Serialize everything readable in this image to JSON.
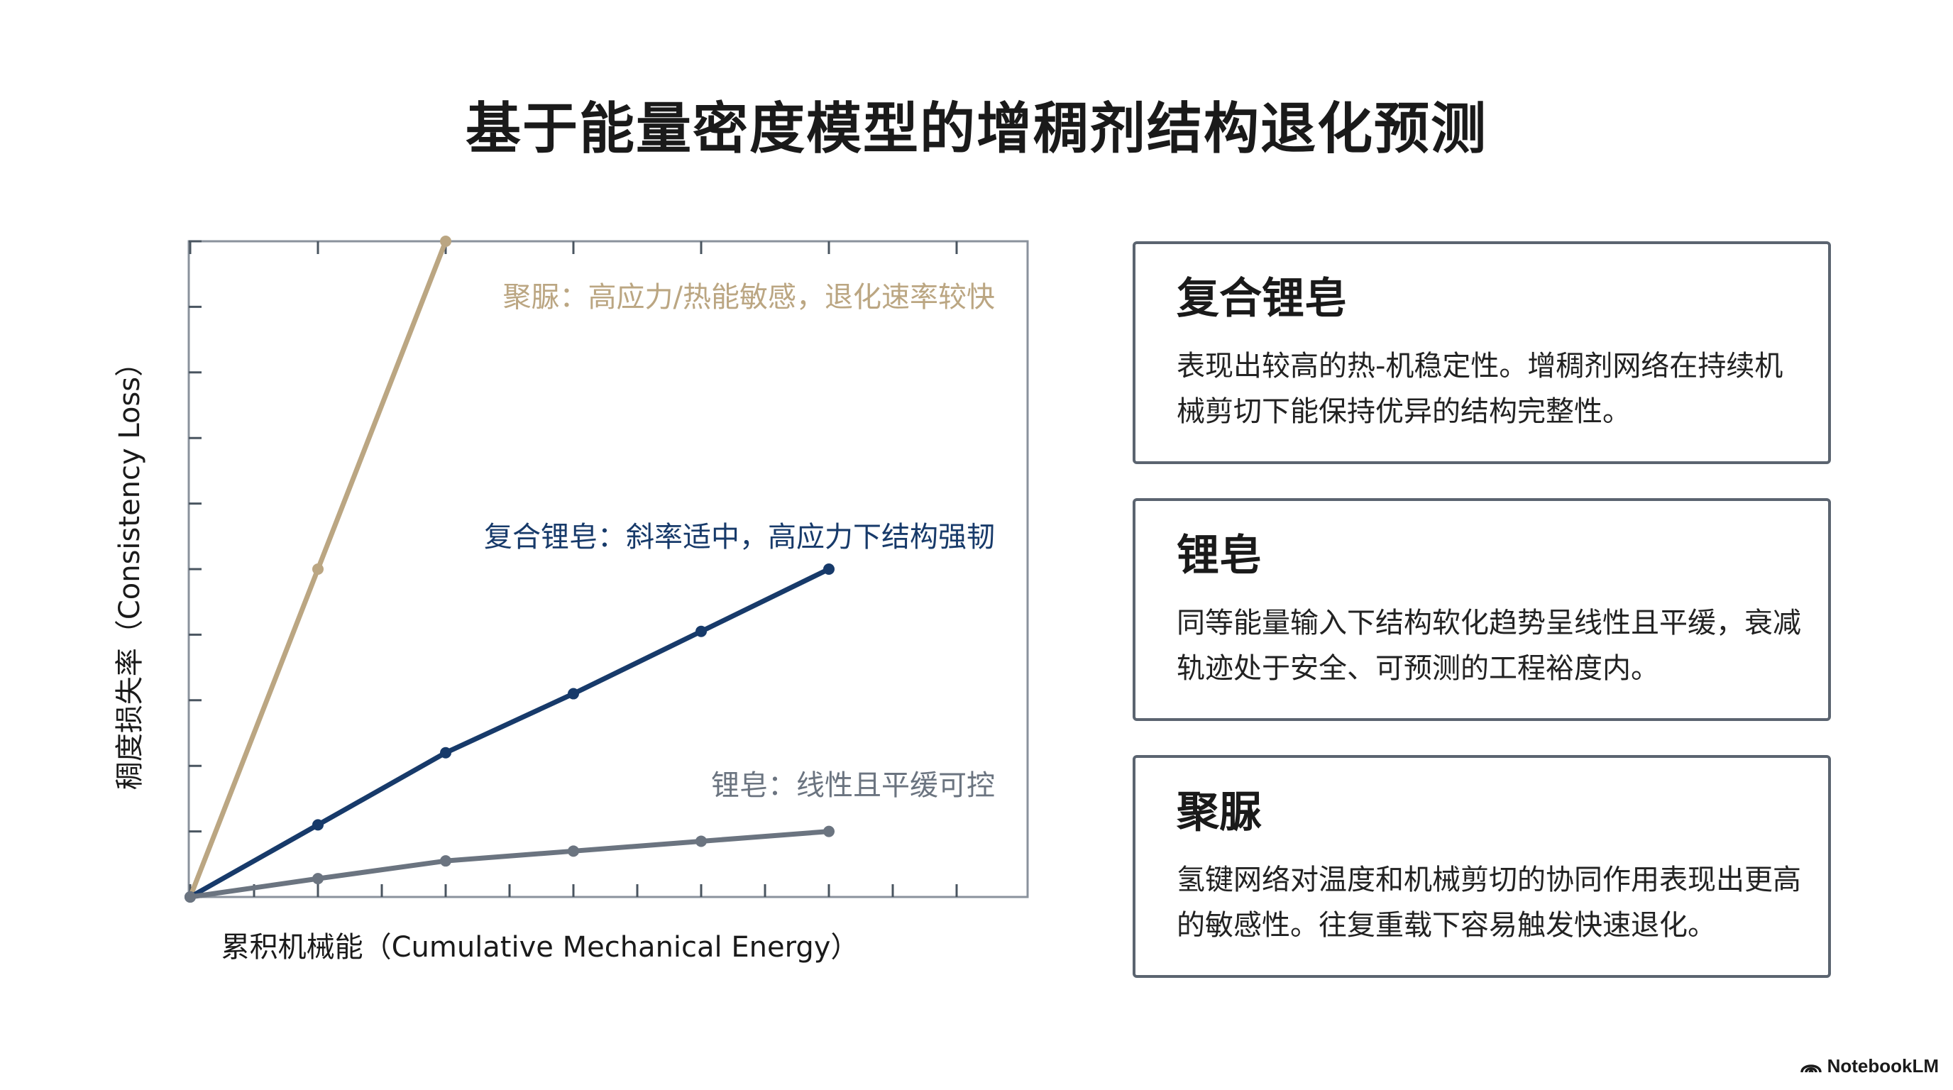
{
  "page": {
    "title": "基于能量密度模型的增稠剂结构退化预测"
  },
  "chart_data": {
    "type": "line",
    "xlabel": "累积机械能（Cumulative Mechanical Energy）",
    "ylabel": "稠度损失率（Consistency Loss）",
    "xlim": [
      0,
      6
    ],
    "ylim": [
      0,
      10
    ],
    "x_ticks": [
      0,
      0.5,
      1,
      1.5,
      2,
      2.5,
      3,
      3.5,
      4,
      4.5,
      5,
      5.5,
      6
    ],
    "y_ticks": [
      0,
      1,
      2,
      3,
      4,
      5,
      6,
      7,
      8,
      9,
      10
    ],
    "grid": false,
    "series": [
      {
        "name": "聚脲",
        "annotation": "聚脲：高应力/热能敏感，退化速率较快",
        "color": "#bba682",
        "x": [
          0,
          1,
          2
        ],
        "y": [
          0,
          5,
          10
        ]
      },
      {
        "name": "复合锂皂",
        "annotation": "复合锂皂：斜率适中，高应力下结构强韧",
        "color": "#173a6a",
        "x": [
          0,
          1,
          2,
          3,
          4,
          5
        ],
        "y": [
          0,
          1.1,
          2.2,
          3.1,
          4.05,
          5
        ]
      },
      {
        "name": "锂皂",
        "annotation": "锂皂：线性且平缓可控",
        "color": "#6b7480",
        "x": [
          0,
          1,
          2,
          3,
          4,
          5
        ],
        "y": [
          0,
          0.28,
          0.55,
          0.7,
          0.85,
          1.0
        ]
      }
    ]
  },
  "cards": [
    {
      "title": "复合锂皂",
      "body": "表现出较高的热-机稳定性。增稠剂网络在持续机械剪切下能保持优异的结构完整性。"
    },
    {
      "title": "锂皂",
      "body": "同等能量输入下结构软化趋势呈线性且平缓，衰减轨迹处于安全、可预测的工程裕度内。"
    },
    {
      "title": "聚脲",
      "body": "氢键网络对温度和机械剪切的协同作用表现出更高的敏感性。往复重载下容易触发快速退化。"
    }
  ],
  "brand": {
    "name": "NotebookLM",
    "logo_icon": "notebooklm-logo-icon"
  }
}
